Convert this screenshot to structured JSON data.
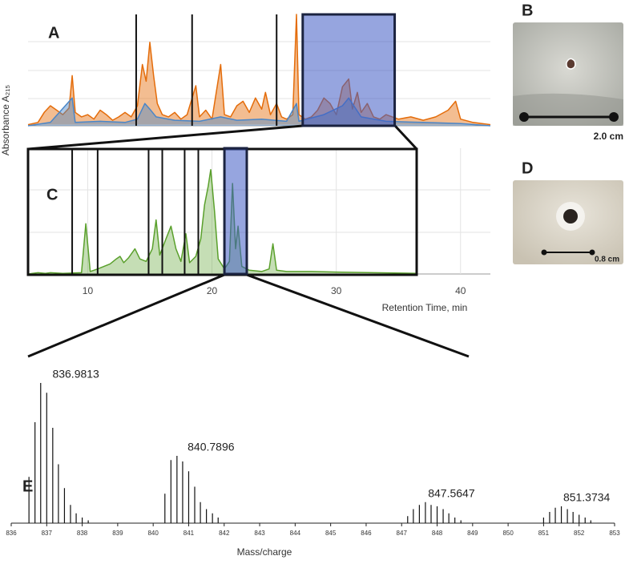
{
  "chart_data": [
    {
      "type": "line",
      "label": "A",
      "ylabel": "Absorbance A₂₁₅",
      "xlim": [
        5.2,
        42.4
      ],
      "ylim": [
        0,
        100
      ],
      "series": [
        {
          "color": "#e46c0a",
          "x": [
            5.2,
            6,
            6.5,
            7,
            7.5,
            8,
            8.5,
            8.75,
            9,
            9.5,
            10,
            10.5,
            11,
            11.5,
            12,
            12.5,
            13,
            13.5,
            14,
            14.4,
            14.7,
            15,
            15.3,
            15.6,
            16,
            16.5,
            17,
            17.5,
            18,
            18.7,
            19,
            19.5,
            20,
            20.7,
            21,
            21.5,
            22,
            22.5,
            23,
            23.5,
            24,
            24.3,
            24.7,
            25.2,
            25.6,
            26,
            26.5,
            26.8,
            27,
            27.5,
            28,
            28.5,
            29,
            29.5,
            30,
            30.5,
            31,
            31.3,
            31.7,
            32,
            32.5,
            33,
            33.5,
            34,
            35,
            36,
            37,
            38,
            39,
            39.6,
            40,
            41,
            42.4
          ],
          "values": [
            1,
            3,
            12,
            18,
            14,
            10,
            16,
            45,
            12,
            8,
            10,
            6,
            14,
            10,
            5,
            8,
            12,
            8,
            18,
            55,
            40,
            75,
            45,
            20,
            10,
            8,
            12,
            6,
            10,
            36,
            8,
            14,
            6,
            55,
            10,
            8,
            18,
            22,
            12,
            25,
            15,
            30,
            10,
            20,
            8,
            6,
            10,
            100,
            10,
            6,
            8,
            14,
            25,
            20,
            10,
            35,
            42,
            15,
            30,
            12,
            20,
            8,
            6,
            10,
            6,
            8,
            5,
            8,
            14,
            22,
            6,
            3,
            1
          ]
        },
        {
          "color": "#4a86c8",
          "x": [
            5.2,
            7,
            8.75,
            9,
            11,
            13,
            14,
            14.6,
            15,
            15.5,
            17,
            19,
            20.7,
            22,
            24,
            26,
            26.8,
            27,
            29,
            30.5,
            31,
            32,
            34,
            37,
            40,
            42.4
          ],
          "values": [
            0,
            3,
            25,
            3,
            4,
            3,
            6,
            20,
            15,
            8,
            5,
            4,
            8,
            5,
            6,
            4,
            20,
            4,
            10,
            18,
            25,
            8,
            4,
            3,
            2,
            0
          ]
        }
      ],
      "fraction_lines": [
        13.9,
        18.4,
        25.2
      ],
      "highlight": [
        27.3,
        34.7
      ]
    },
    {
      "type": "line",
      "label": "C",
      "xlabel": "Retention Time, min",
      "xlim": [
        5.2,
        42.4
      ],
      "ylim": [
        0,
        100
      ],
      "xticks": [
        10,
        20,
        30,
        40
      ],
      "series": [
        {
          "color": "#5aa02c",
          "x": [
            5.2,
            6,
            6.6,
            7,
            8,
            9.5,
            9.85,
            10.2,
            10.8,
            11.3,
            11.8,
            12.3,
            12.6,
            12.9,
            13.3,
            13.8,
            14.2,
            14.7,
            15.2,
            15.5,
            15.8,
            16.3,
            16.7,
            17.1,
            17.5,
            17.9,
            18.2,
            18.7,
            19.1,
            19.4,
            19.7,
            19.9,
            20.2,
            20.5,
            21,
            21.4,
            21.65,
            21.9,
            22.1,
            22.4,
            23,
            24,
            24.6,
            24.9,
            25.2,
            26,
            28,
            30,
            33,
            36.5
          ],
          "values": [
            0,
            1,
            0.5,
            1,
            0.5,
            1,
            40,
            2,
            4,
            6,
            8,
            12,
            14,
            9,
            13,
            20,
            12,
            10,
            20,
            43,
            15,
            28,
            38,
            20,
            10,
            32,
            9,
            14,
            28,
            55,
            70,
            83,
            50,
            12,
            4,
            10,
            72,
            20,
            38,
            6,
            3,
            2,
            4,
            24,
            3,
            2,
            2,
            1.5,
            1,
            0.5
          ]
        }
      ],
      "fraction_lines": [
        8.75,
        10.8,
        14.9,
        16.0,
        17.8,
        18.9
      ],
      "highlight": [
        21.0,
        22.8
      ]
    },
    {
      "type": "stem",
      "label": "E",
      "xlabel": "Mass/charge",
      "xlim": [
        836,
        853
      ],
      "ylim": [
        0,
        100
      ],
      "xticks": [
        836,
        837,
        838,
        839,
        840,
        841,
        842,
        843,
        844,
        845,
        846,
        847,
        848,
        849,
        850,
        851,
        852,
        853
      ],
      "x": [
        836.5,
        836.67,
        836.83,
        837.0,
        837.17,
        837.33,
        837.5,
        837.67,
        837.83,
        838.0,
        838.17,
        840.33,
        840.5,
        840.67,
        840.83,
        841.0,
        841.17,
        841.33,
        841.5,
        841.67,
        841.83,
        847.17,
        847.33,
        847.5,
        847.67,
        847.83,
        848.0,
        848.17,
        848.33,
        848.5,
        848.67,
        851.0,
        851.17,
        851.33,
        851.5,
        851.67,
        851.83,
        852.0,
        852.17,
        852.33
      ],
      "values": [
        33,
        72,
        100,
        93,
        68,
        42,
        25,
        13,
        7,
        4,
        2,
        21,
        45,
        48,
        44,
        37,
        26,
        15,
        10,
        7,
        4,
        5,
        10,
        13,
        15,
        13,
        12,
        10,
        7,
        4,
        2,
        4,
        8,
        11,
        12,
        10,
        8,
        6,
        4,
        2
      ],
      "peak_labels": [
        836.9813,
        840.7896,
        847.5647,
        851.3734
      ]
    }
  ],
  "photos": [
    {
      "label": "B",
      "scale": "2.0 cm"
    },
    {
      "label": "D",
      "scale": "0.8 cm"
    }
  ]
}
